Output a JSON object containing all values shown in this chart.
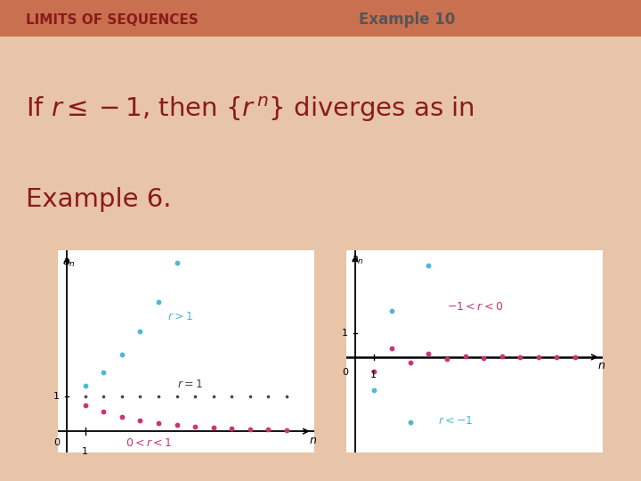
{
  "bg_color": "#e8c4a8",
  "header_bar_color": "#c87050",
  "header_text": "LIMITS OF SEQUENCES",
  "header_text_color": "#8B1A1A",
  "example_text": "Example 10",
  "example_text_color": "#555555",
  "main_text_color": "#8B1A1A",
  "box_bg": "#ffffff",
  "box_border": "#c87050",
  "left_plot": {
    "r_gt1_color": "#4db8d4",
    "r_eq1_color": "#444444",
    "r_0to1_color": "#cc3377",
    "r_gt1": 1.3,
    "r_eq1": 1.0,
    "r_0to1": 0.75
  },
  "right_plot": {
    "r_neg1to0_color": "#cc3377",
    "r_lt_neg1_color": "#4db8d4",
    "r_neg1to0": -0.6,
    "r_lt_neg1": -1.4
  }
}
